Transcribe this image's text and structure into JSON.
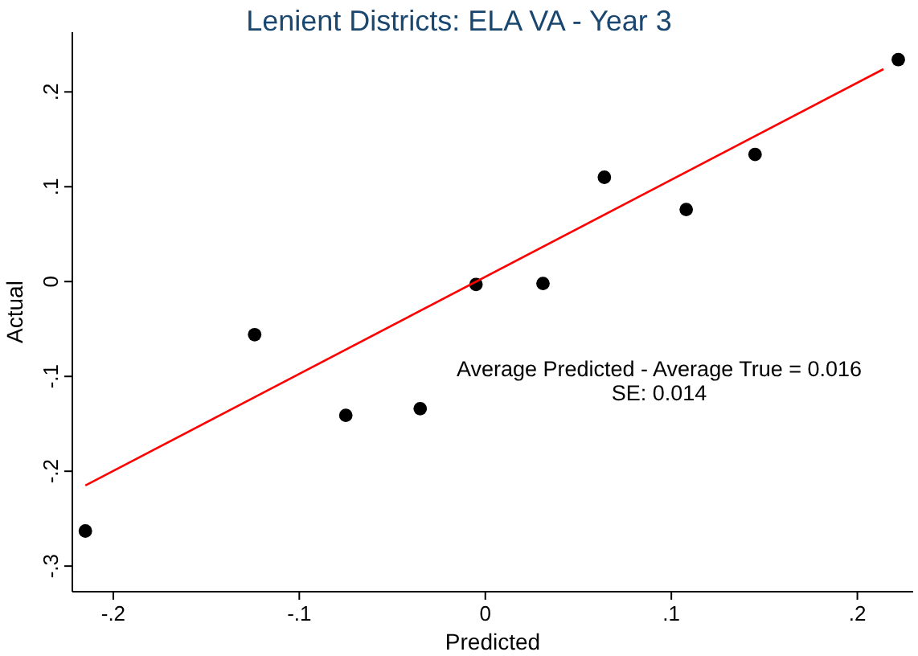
{
  "chart_data": {
    "type": "scatter",
    "title": "Lenient Districts: ELA VA - Year 3",
    "xlabel": "Predicted",
    "ylabel": "Actual",
    "xlim": [
      -0.222,
      0.23
    ],
    "ylim": [
      -0.327,
      0.263
    ],
    "xticks": [
      {
        "value": -0.2,
        "label": "-.2"
      },
      {
        "value": -0.1,
        "label": "-.1"
      },
      0,
      {
        "value": 0.1,
        "label": ".1"
      },
      {
        "value": 0.2,
        "label": ".2"
      }
    ],
    "yticks": [
      {
        "value": -0.3,
        "label": "-.3"
      },
      {
        "value": -0.2,
        "label": "-.2"
      },
      {
        "value": -0.1,
        "label": "-.1"
      },
      0,
      {
        "value": 0.1,
        "label": ".1"
      },
      {
        "value": 0.2,
        "label": ".2"
      }
    ],
    "grid": false,
    "marker": "circle",
    "annotations": [
      "Average Predicted - Average True = 0.016",
      "SE: 0.014"
    ],
    "series": [
      {
        "color": "#000000",
        "x": [
          -0.215,
          -0.124,
          -0.075,
          -0.035,
          -0.005,
          0.031,
          0.064,
          0.108,
          0.145,
          0.222
        ],
        "values": [
          -0.263,
          -0.056,
          -0.141,
          -0.134,
          -0.003,
          -0.002,
          0.11,
          0.076,
          0.134,
          0.234
        ]
      },
      {
        "type": "line",
        "color": "#ff0000",
        "line_style": "solid",
        "marker": "none",
        "x": [
          -0.215,
          0.214
        ],
        "values": [
          -0.215,
          0.224
        ]
      }
    ]
  }
}
